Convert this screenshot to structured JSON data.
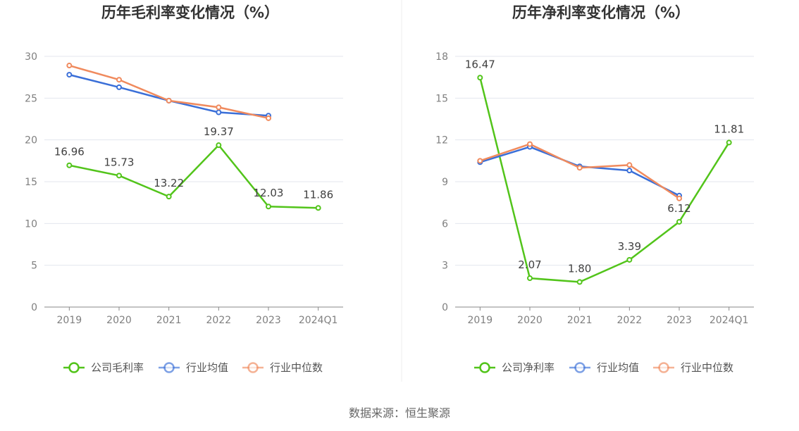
{
  "source": "数据来源：恒生聚源",
  "chart_data": [
    {
      "type": "line",
      "title": "历年毛利率变化情况（%）",
      "categories": [
        "2019",
        "2020",
        "2021",
        "2022",
        "2023",
        "2024Q1"
      ],
      "ylim": [
        0,
        30
      ],
      "yticks": [
        0,
        5,
        10,
        15,
        20,
        25,
        30
      ],
      "grid": true,
      "legend": "bottom",
      "series": [
        {
          "name": "公司毛利率",
          "color": "#52c41a",
          "labeled": true,
          "values": [
            16.96,
            15.73,
            13.22,
            19.37,
            12.03,
            11.86
          ],
          "labels": [
            "16.96",
            "15.73",
            "13.22",
            "19.37",
            "12.03",
            "11.86"
          ]
        },
        {
          "name": "行业均值",
          "color": "#3a6fd8",
          "labeled": false,
          "values": [
            27.8,
            26.3,
            24.7,
            23.3,
            22.9,
            null
          ]
        },
        {
          "name": "行业中位数",
          "color": "#f08a5d",
          "labeled": false,
          "values": [
            28.9,
            27.2,
            24.7,
            23.9,
            22.6,
            null
          ]
        }
      ]
    },
    {
      "type": "line",
      "title": "历年净利率变化情况（%）",
      "categories": [
        "2019",
        "2020",
        "2021",
        "2022",
        "2023",
        "2024Q1"
      ],
      "ylim": [
        0,
        18
      ],
      "yticks": [
        0,
        3,
        6,
        9,
        12,
        15,
        18
      ],
      "grid": true,
      "legend": "bottom",
      "series": [
        {
          "name": "公司净利率",
          "color": "#52c41a",
          "labeled": true,
          "values": [
            16.47,
            2.07,
            1.8,
            3.39,
            6.12,
            11.81
          ],
          "labels": [
            "16.47",
            "2.07",
            "1.80",
            "3.39",
            "6.12",
            "11.81"
          ]
        },
        {
          "name": "行业均值",
          "color": "#3a6fd8",
          "labeled": false,
          "values": [
            10.4,
            11.5,
            10.1,
            9.8,
            8.0,
            null
          ]
        },
        {
          "name": "行业中位数",
          "color": "#f08a5d",
          "labeled": false,
          "values": [
            10.5,
            11.7,
            10.0,
            10.2,
            7.8,
            null
          ]
        }
      ]
    }
  ]
}
